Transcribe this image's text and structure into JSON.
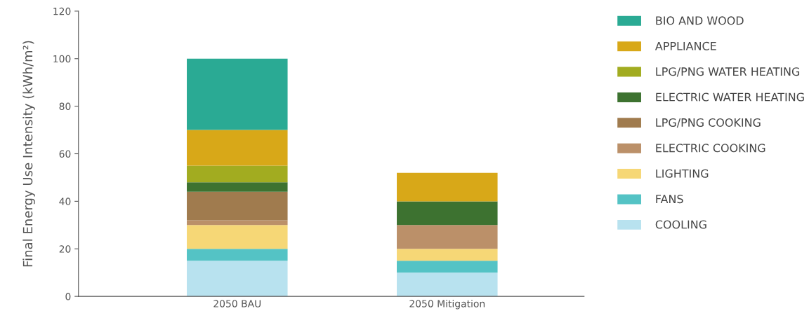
{
  "chart_data": {
    "type": "bar",
    "stacked": true,
    "ylabel": "Final Energy Use Intensity (kWh/m²)",
    "categories": [
      "2050 BAU",
      "2050 Mitigation"
    ],
    "ylim": [
      0,
      120
    ],
    "yticks": [
      0,
      20,
      40,
      60,
      80,
      100,
      120
    ],
    "grid": false,
    "legend": "right",
    "series": [
      {
        "name": "COOLING",
        "color": "#b8e2ef",
        "values": [
          15,
          10
        ]
      },
      {
        "name": "FANS",
        "color": "#54c3c5",
        "values": [
          5,
          5
        ]
      },
      {
        "name": "LIGHTING",
        "color": "#f6d776",
        "values": [
          10,
          5
        ]
      },
      {
        "name": "ELECTRIC COOKING",
        "color": "#bb9069",
        "values": [
          2,
          10
        ]
      },
      {
        "name": "LPG/PNG COOKING",
        "color": "#a07b4e",
        "values": [
          12,
          0
        ]
      },
      {
        "name": "ELECTRIC WATER HEATING",
        "color": "#3d7230",
        "values": [
          4,
          10
        ]
      },
      {
        "name": "LPG/PNG WATER HEATING",
        "color": "#a2ac20",
        "values": [
          7,
          0
        ]
      },
      {
        "name": "APPLIANCE",
        "color": "#d8a818",
        "values": [
          15,
          12
        ]
      },
      {
        "name": "BIO AND WOOD",
        "color": "#2aaa94",
        "values": [
          30,
          0
        ]
      }
    ]
  }
}
